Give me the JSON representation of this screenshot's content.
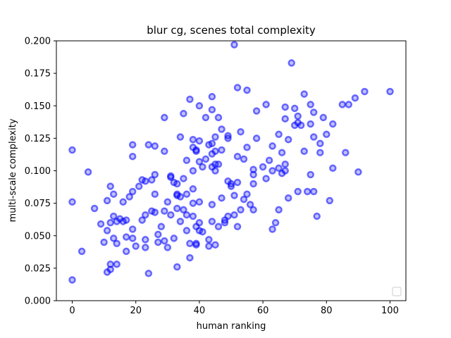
{
  "chart_data": {
    "type": "scatter",
    "title": "blur cg, scenes total complexity",
    "xlabel": "human ranking",
    "ylabel": "multi-scale complexity",
    "xlim": [
      -5,
      105
    ],
    "ylim": [
      0,
      0.2
    ],
    "x_ticks": [
      0,
      20,
      40,
      60,
      80,
      100
    ],
    "x_tick_labels": [
      "0",
      "20",
      "40",
      "60",
      "80",
      "100"
    ],
    "y_ticks": [
      0,
      0.025,
      0.05,
      0.075,
      0.1,
      0.125,
      0.15,
      0.175,
      0.2
    ],
    "y_tick_labels": [
      "0.000",
      "0.025",
      "0.050",
      "0.075",
      "0.100",
      "0.125",
      "0.150",
      "0.175",
      "0.200"
    ],
    "grid": false,
    "legend": {
      "placement": "lower-right",
      "entries": []
    },
    "marker": {
      "shape": "circle",
      "edge_color": "#0000ff",
      "face_color": "#0000ff",
      "alpha": 0.55,
      "hollow_center": true
    },
    "series": [
      {
        "points": [
          [
            0,
            0.116
          ],
          [
            0,
            0.076
          ],
          [
            0,
            0.016
          ],
          [
            3,
            0.038
          ],
          [
            5,
            0.099
          ],
          [
            7,
            0.071
          ],
          [
            9,
            0.059
          ],
          [
            10,
            0.045
          ],
          [
            11,
            0.054
          ],
          [
            11,
            0.077
          ],
          [
            11,
            0.022
          ],
          [
            12,
            0.088
          ],
          [
            12,
            0.06
          ],
          [
            12,
            0.028
          ],
          [
            12,
            0.024
          ],
          [
            13,
            0.082
          ],
          [
            13,
            0.065
          ],
          [
            13,
            0.048
          ],
          [
            14,
            0.061
          ],
          [
            14,
            0.044
          ],
          [
            14,
            0.028
          ],
          [
            15,
            0.063
          ],
          [
            16,
            0.076
          ],
          [
            16,
            0.061
          ],
          [
            17,
            0.062
          ],
          [
            17,
            0.049
          ],
          [
            17,
            0.038
          ],
          [
            18,
            0.08
          ],
          [
            19,
            0.12
          ],
          [
            19,
            0.111
          ],
          [
            19,
            0.084
          ],
          [
            19,
            0.055
          ],
          [
            19,
            0.048
          ],
          [
            20,
            0.042
          ],
          [
            21,
            0.088
          ],
          [
            22,
            0.093
          ],
          [
            22,
            0.062
          ],
          [
            23,
            0.092
          ],
          [
            23,
            0.066
          ],
          [
            23,
            0.047
          ],
          [
            23,
            0.041
          ],
          [
            24,
            0.12
          ],
          [
            24,
            0.021
          ],
          [
            25,
            0.093
          ],
          [
            25,
            0.069
          ],
          [
            26,
            0.119
          ],
          [
            26,
            0.097
          ],
          [
            26,
            0.082
          ],
          [
            26,
            0.068
          ],
          [
            27,
            0.051
          ],
          [
            27,
            0.045
          ],
          [
            28,
            0.057
          ],
          [
            29,
            0.141
          ],
          [
            29,
            0.115
          ],
          [
            29,
            0.069
          ],
          [
            29,
            0.046
          ],
          [
            30,
            0.076
          ],
          [
            30,
            0.041
          ],
          [
            31,
            0.096
          ],
          [
            31,
            0.095
          ],
          [
            31,
            0.066
          ],
          [
            32,
            0.091
          ],
          [
            32,
            0.048
          ],
          [
            33,
            0.09
          ],
          [
            33,
            0.082
          ],
          [
            33,
            0.081
          ],
          [
            33,
            0.071
          ],
          [
            33,
            0.026
          ],
          [
            34,
            0.126
          ],
          [
            34,
            0.08
          ],
          [
            34,
            0.061
          ],
          [
            35,
            0.144
          ],
          [
            35,
            0.094
          ],
          [
            35,
            0.07
          ],
          [
            36,
            0.108
          ],
          [
            36,
            0.082
          ],
          [
            36,
            0.066
          ],
          [
            36,
            0.054
          ],
          [
            37,
            0.155
          ],
          [
            37,
            0.044
          ],
          [
            37,
            0.033
          ],
          [
            38,
            0.124
          ],
          [
            38,
            0.118
          ],
          [
            38,
            0.1
          ],
          [
            38,
            0.086
          ],
          [
            38,
            0.075
          ],
          [
            38,
            0.065
          ],
          [
            39,
            0.116
          ],
          [
            39,
            0.115
          ],
          [
            39,
            0.057
          ],
          [
            39,
            0.044
          ],
          [
            39,
            0.043
          ],
          [
            40,
            0.15
          ],
          [
            40,
            0.123
          ],
          [
            40,
            0.107
          ],
          [
            40,
            0.076
          ],
          [
            40,
            0.06
          ],
          [
            40,
            0.054
          ],
          [
            41,
            0.103
          ],
          [
            41,
            0.053
          ],
          [
            42,
            0.141
          ],
          [
            42,
            0.109
          ],
          [
            43,
            0.12
          ],
          [
            43,
            0.047
          ],
          [
            43,
            0.042
          ],
          [
            44,
            0.157
          ],
          [
            44,
            0.147
          ],
          [
            44,
            0.121
          ],
          [
            44,
            0.113
          ],
          [
            44,
            0.103
          ],
          [
            44,
            0.074
          ],
          [
            44,
            0.061
          ],
          [
            45,
            0.126
          ],
          [
            45,
            0.115
          ],
          [
            45,
            0.105
          ],
          [
            45,
            0.1
          ],
          [
            45,
            0.043
          ],
          [
            46,
            0.141
          ],
          [
            46,
            0.105
          ],
          [
            46,
            0.057
          ],
          [
            47,
            0.132
          ],
          [
            47,
            0.116
          ],
          [
            47,
            0.079
          ],
          [
            48,
            0.062
          ],
          [
            48,
            0.06
          ],
          [
            49,
            0.127
          ],
          [
            49,
            0.125
          ],
          [
            49,
            0.092
          ],
          [
            49,
            0.065
          ],
          [
            50,
            0.09
          ],
          [
            50,
            0.088
          ],
          [
            51,
            0.197
          ],
          [
            51,
            0.081
          ],
          [
            51,
            0.066
          ],
          [
            52,
            0.164
          ],
          [
            52,
            0.111
          ],
          [
            52,
            0.091
          ],
          [
            52,
            0.057
          ],
          [
            53,
            0.13
          ],
          [
            53,
            0.07
          ],
          [
            54,
            0.109
          ],
          [
            54,
            0.078
          ],
          [
            55,
            0.162
          ],
          [
            55,
            0.118
          ],
          [
            55,
            0.082
          ],
          [
            56,
            0.074
          ],
          [
            57,
            0.101
          ],
          [
            57,
            0.097
          ],
          [
            57,
            0.09
          ],
          [
            57,
            0.07
          ],
          [
            58,
            0.146
          ],
          [
            58,
            0.125
          ],
          [
            60,
            0.103
          ],
          [
            61,
            0.151
          ],
          [
            61,
            0.094
          ],
          [
            62,
            0.108
          ],
          [
            63,
            0.119
          ],
          [
            63,
            0.1
          ],
          [
            63,
            0.055
          ],
          [
            64,
            0.06
          ],
          [
            65,
            0.128
          ],
          [
            65,
            0.102
          ],
          [
            65,
            0.07
          ],
          [
            66,
            0.114
          ],
          [
            66,
            0.098
          ],
          [
            67,
            0.149
          ],
          [
            67,
            0.14
          ],
          [
            67,
            0.105
          ],
          [
            67,
            0.1
          ],
          [
            68,
            0.124
          ],
          [
            68,
            0.079
          ],
          [
            69,
            0.183
          ],
          [
            70,
            0.148
          ],
          [
            70,
            0.135
          ],
          [
            71,
            0.142
          ],
          [
            71,
            0.137
          ],
          [
            71,
            0.084
          ],
          [
            72,
            0.135
          ],
          [
            73,
            0.159
          ],
          [
            73,
            0.115
          ],
          [
            74,
            0.084
          ],
          [
            75,
            0.151
          ],
          [
            75,
            0.136
          ],
          [
            75,
            0.097
          ],
          [
            76,
            0.145
          ],
          [
            76,
            0.126
          ],
          [
            76,
            0.084
          ],
          [
            77,
            0.065
          ],
          [
            78,
            0.121
          ],
          [
            78,
            0.114
          ],
          [
            79,
            0.141
          ],
          [
            80,
            0.128
          ],
          [
            81,
            0.077
          ],
          [
            82,
            0.136
          ],
          [
            82,
            0.102
          ],
          [
            85,
            0.151
          ],
          [
            86,
            0.114
          ],
          [
            87,
            0.151
          ],
          [
            89,
            0.156
          ],
          [
            90,
            0.099
          ],
          [
            92,
            0.161
          ],
          [
            100,
            0.161
          ]
        ]
      }
    ]
  }
}
